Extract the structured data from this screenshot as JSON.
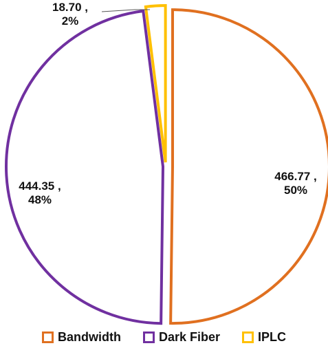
{
  "chart_data": {
    "type": "pie",
    "title": "",
    "slices": [
      {
        "name": "Bandwidth",
        "value": 466.77,
        "percent_label": "50%",
        "value_label": "466.77 ,",
        "color": "#E07020"
      },
      {
        "name": "Dark Fiber",
        "value": 444.35,
        "percent_label": "48%",
        "value_label": "444.35 ,",
        "color": "#7030A0"
      },
      {
        "name": "IPLC",
        "value": 18.7,
        "percent_label": "2%",
        "value_label": "18.70 ,",
        "color": "#FFC000"
      }
    ],
    "legend_position": "bottom",
    "fill": "none (outlined slices on white)"
  },
  "legend": {
    "items": [
      {
        "label": "Bandwidth",
        "color": "#E07020"
      },
      {
        "label": "Dark Fiber",
        "color": "#7030A0"
      },
      {
        "label": "IPLC",
        "color": "#FFC000"
      }
    ]
  }
}
